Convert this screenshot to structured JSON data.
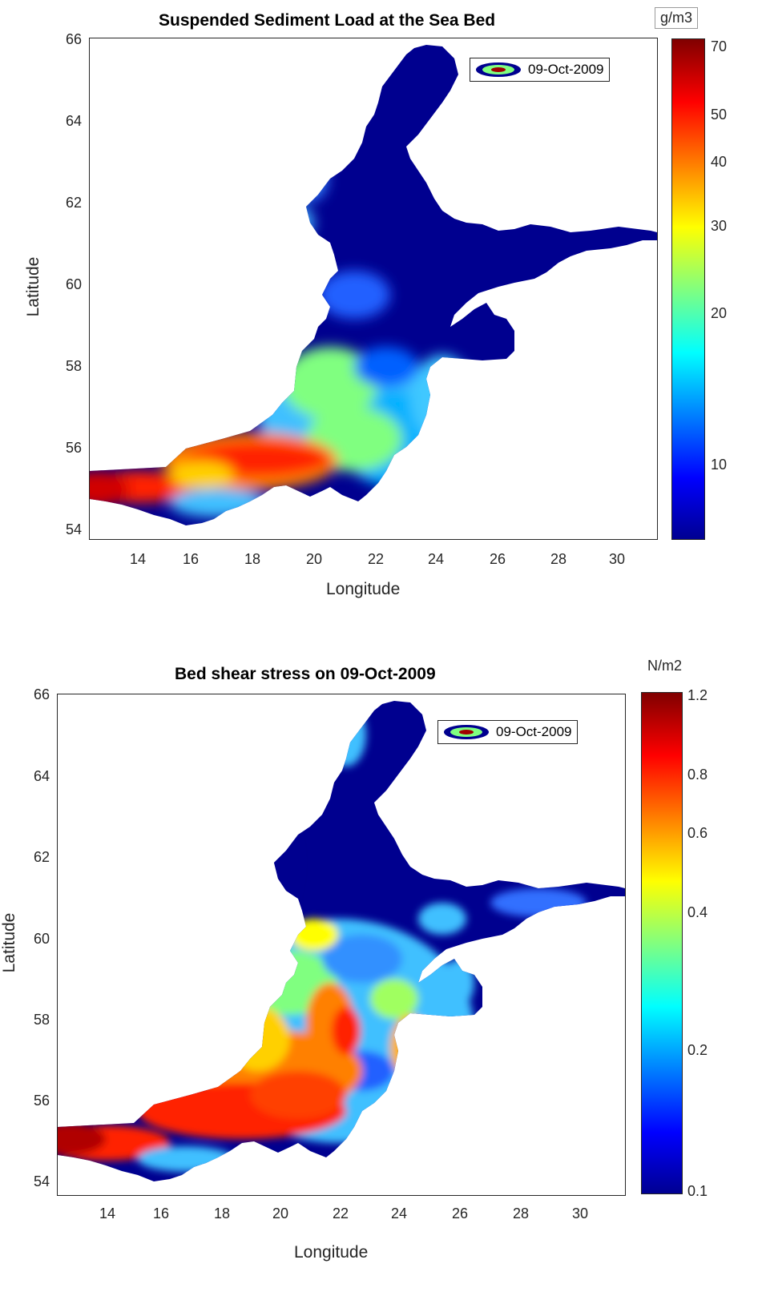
{
  "colorbar_colors": [
    "#00008f",
    "#0000ff",
    "#0080ff",
    "#00ffff",
    "#80ff80",
    "#ffff00",
    "#ff8000",
    "#ff0000",
    "#800000"
  ],
  "legend_date": "09-Oct-2009",
  "maps": [
    {
      "id": "top",
      "title": "Suspended Sediment Load at the Sea Bed",
      "xlabel": "Longitude",
      "ylabel": "Latitude",
      "x_ticks": [
        "14",
        "16",
        "18",
        "20",
        "22",
        "24",
        "26",
        "28",
        "30"
      ],
      "y_ticks": [
        "54",
        "56",
        "58",
        "60",
        "62",
        "64",
        "66"
      ],
      "colorbar_unit": "g/m3",
      "colorbar_ticks": [
        "70",
        "50",
        "40",
        "30",
        "20",
        "10"
      ],
      "legend_label": "09-Oct-2009"
    },
    {
      "id": "bottom",
      "title": "Bed shear stress on 09-Oct-2009",
      "xlabel": "Longitude",
      "ylabel": "Latitude",
      "x_ticks": [
        "14",
        "16",
        "18",
        "20",
        "22",
        "24",
        "26",
        "28",
        "30"
      ],
      "y_ticks": [
        "54",
        "56",
        "58",
        "60",
        "62",
        "64",
        "66"
      ],
      "colorbar_unit": "N/m2",
      "colorbar_ticks": [
        "1.2",
        "0.8",
        "0.6",
        "0.4",
        "0.2",
        "0.1"
      ],
      "legend_label": "09-Oct-2009"
    }
  ]
}
